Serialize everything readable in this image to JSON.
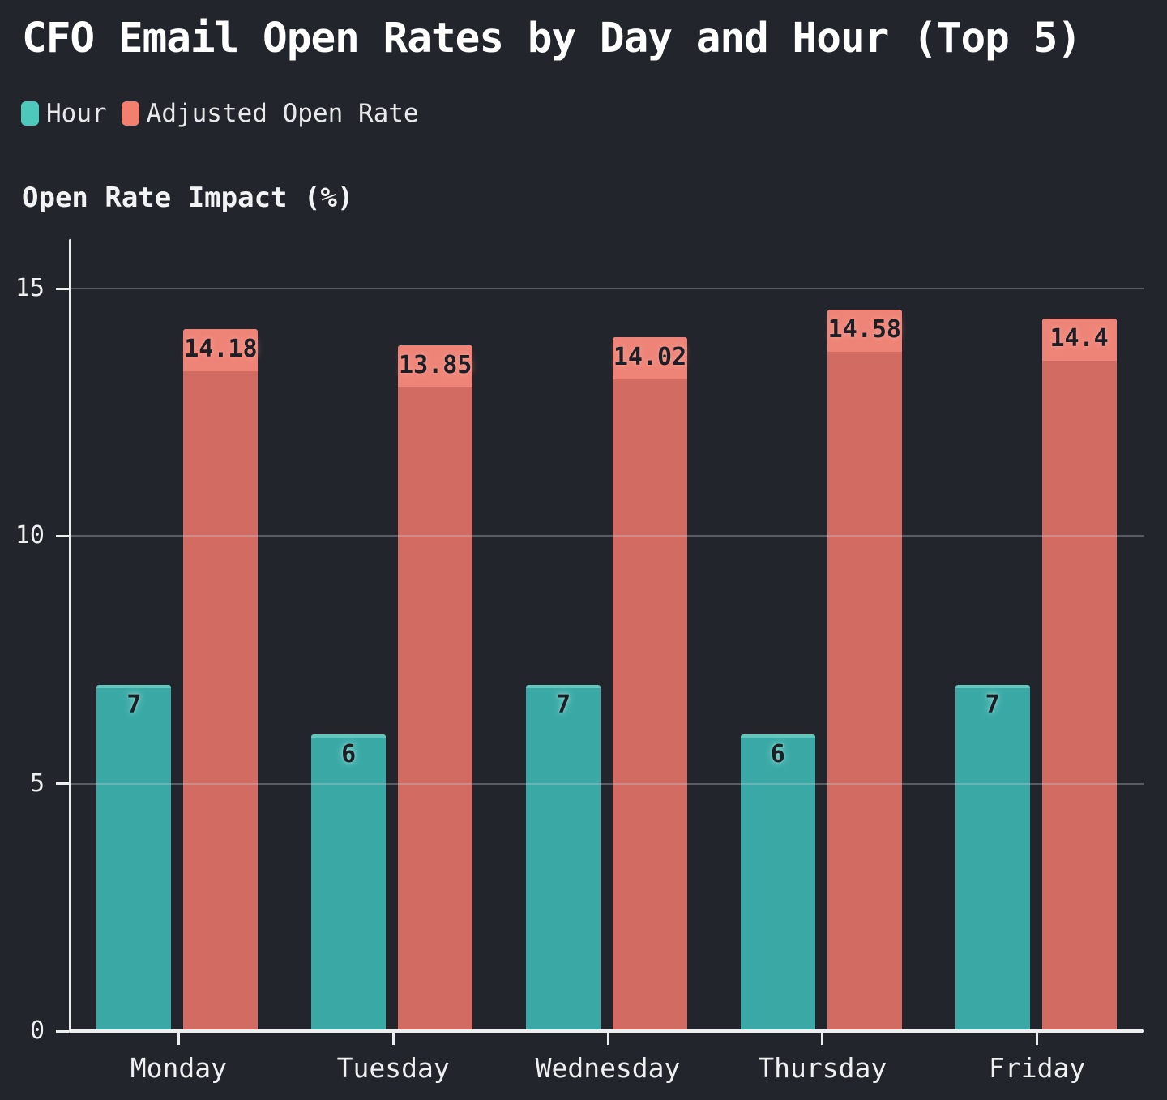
{
  "title": "CFO Email Open Rates by Day and Hour (Top 5)",
  "colors": {
    "background": "#23252c",
    "title_text": "#ffffff",
    "axis_line": "#edeeef",
    "grid_line": "#4b4e56",
    "tick_text": "#eef0f1",
    "bar_label_text": "#1d1f26",
    "legend_hour_swatch": "#4dc9bc",
    "legend_rate_swatch": "#f3806f"
  },
  "chart_data": {
    "type": "bar",
    "title": "CFO Email Open Rates by Day and Hour (Top 5)",
    "ylabel": "Open Rate Impact (%)",
    "xlabel": "",
    "categories": [
      "Monday",
      "Tuesday",
      "Wednesday",
      "Thursday",
      "Friday"
    ],
    "series": [
      {
        "name": "Hour",
        "values": [
          7,
          6,
          7,
          6,
          7
        ],
        "color": "#3aa9a6",
        "color_light": "#63c5bc"
      },
      {
        "name": "Adjusted Open Rate",
        "values": [
          14.18,
          13.85,
          14.02,
          14.58,
          14.4
        ],
        "color": "#d26c63",
        "color_light": "#ee8478"
      }
    ],
    "ylim": [
      0,
      16
    ],
    "yticks": [
      0,
      5,
      10,
      15
    ],
    "grid": true,
    "legend_position": "top-left",
    "bar_value_labels": true
  }
}
